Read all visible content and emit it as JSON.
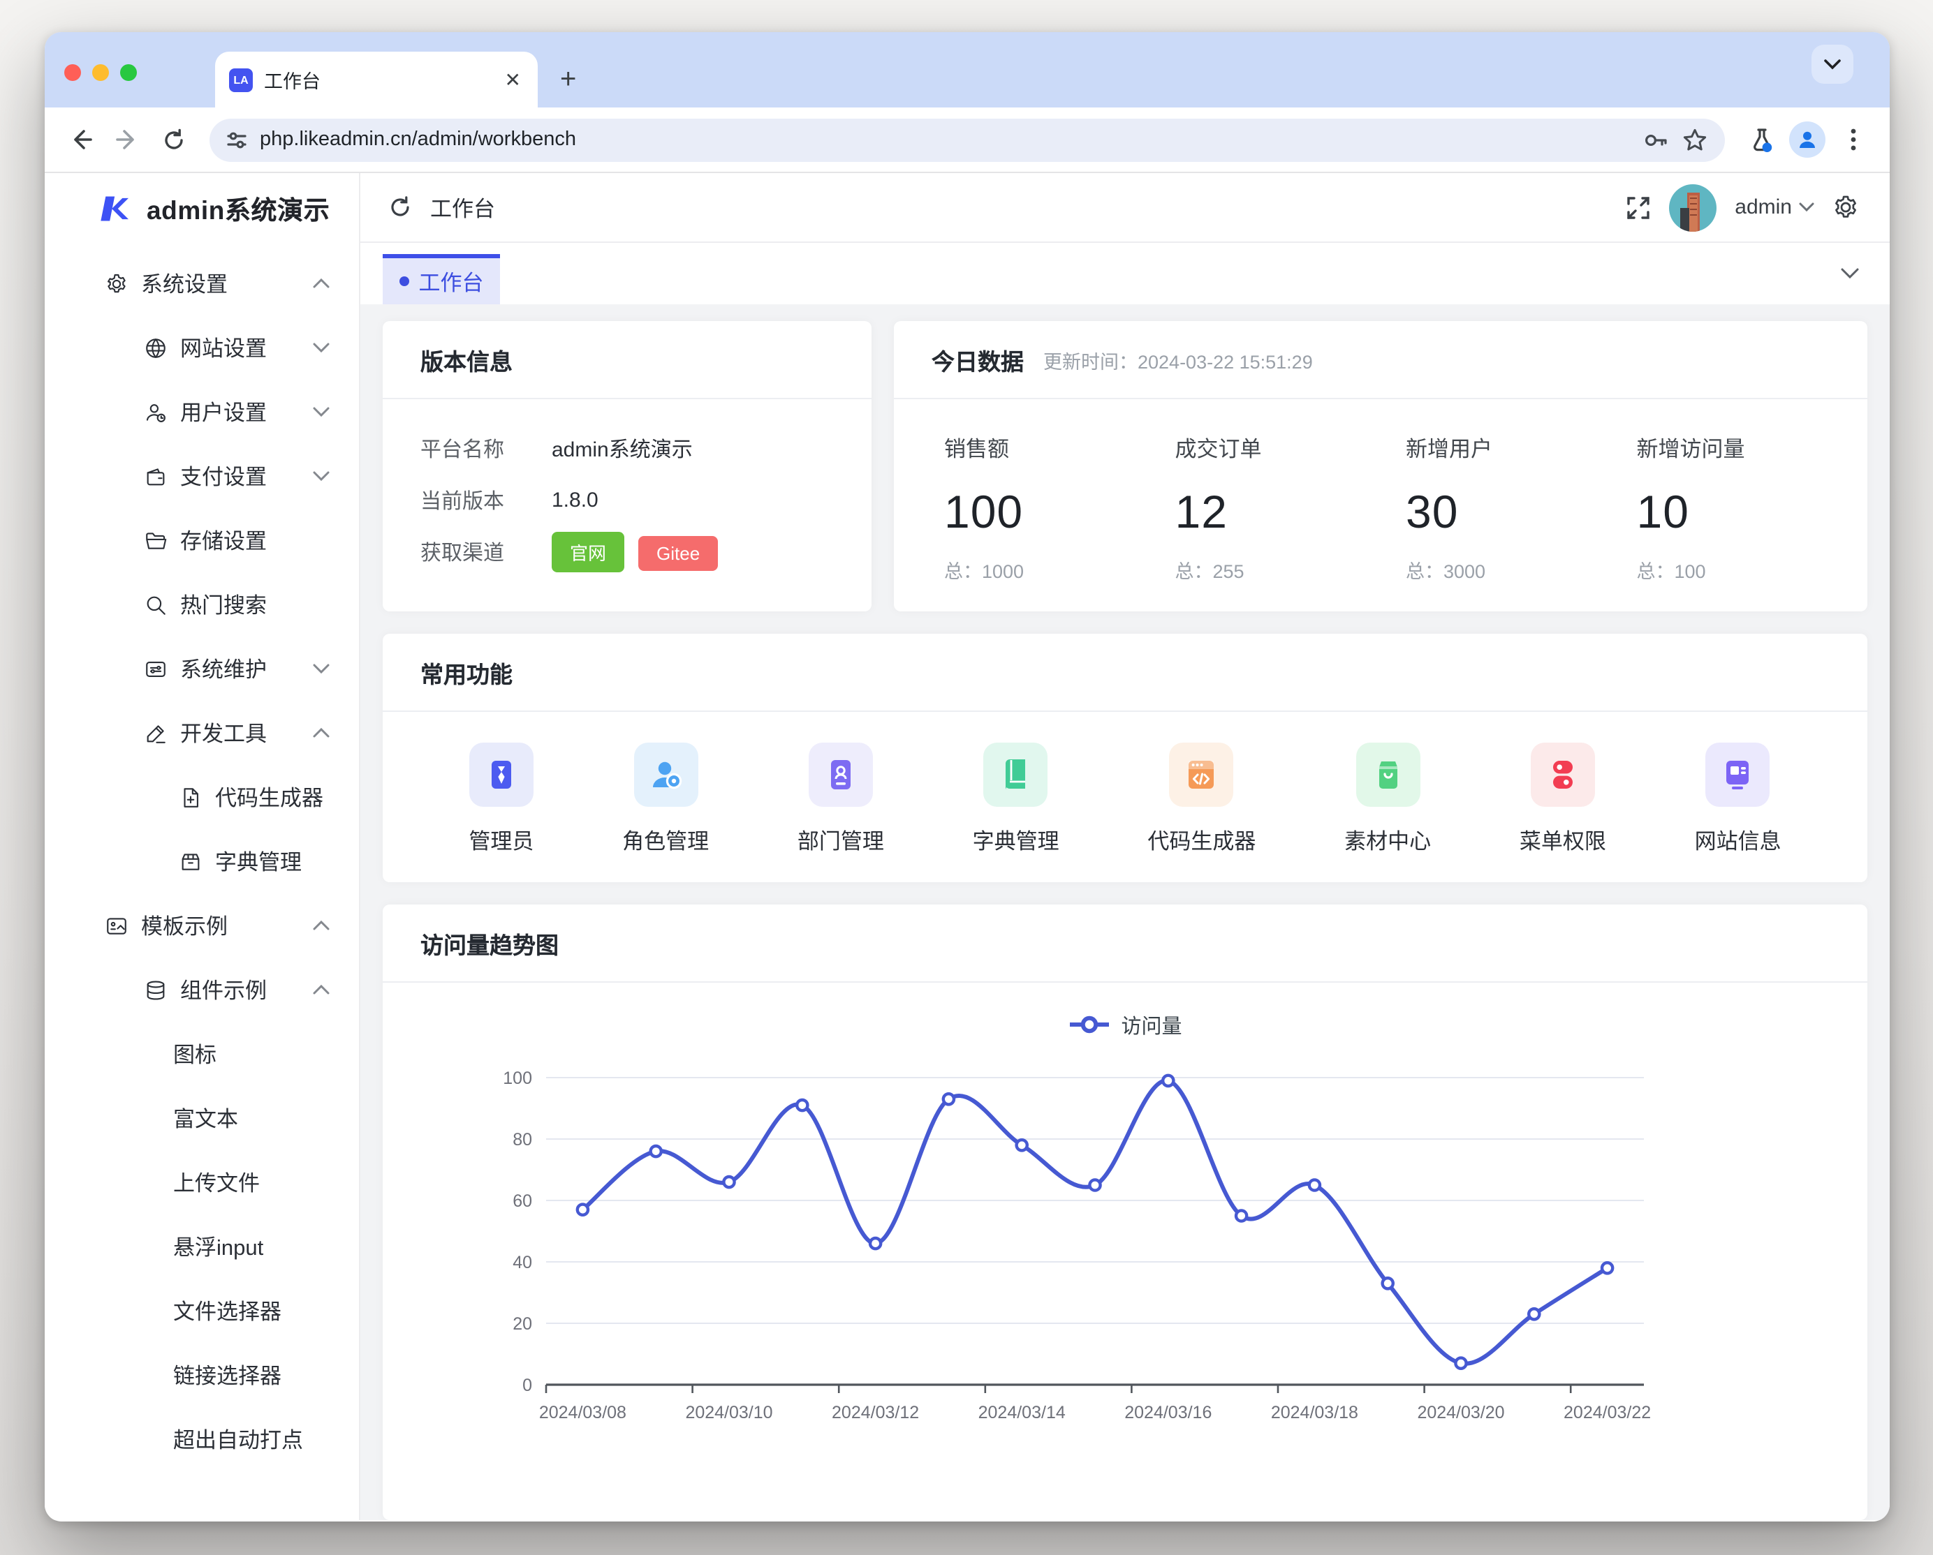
{
  "browser": {
    "tab_title": "工作台",
    "favicon_text": "LA",
    "url": "php.likeadmin.cn/admin/workbench"
  },
  "app": {
    "sidebar": {
      "logo_text": "admin系统演示",
      "menu": [
        {
          "label": "系统设置",
          "icon": "gear",
          "level": 1,
          "chevron": "up"
        },
        {
          "label": "网站设置",
          "icon": "globe",
          "level": 2,
          "chevron": "down"
        },
        {
          "label": "用户设置",
          "icon": "user",
          "level": 2,
          "chevron": "down"
        },
        {
          "label": "支付设置",
          "icon": "wallet",
          "level": 2,
          "chevron": "down"
        },
        {
          "label": "存储设置",
          "icon": "folder",
          "level": 2,
          "chevron": null
        },
        {
          "label": "热门搜索",
          "icon": "search",
          "level": 2,
          "chevron": null
        },
        {
          "label": "系统维护",
          "icon": "maintain",
          "level": 2,
          "chevron": "down"
        },
        {
          "label": "开发工具",
          "icon": "pen",
          "level": 2,
          "chevron": "up"
        },
        {
          "label": "代码生成器",
          "icon": "file-plus",
          "level": 3,
          "chevron": null
        },
        {
          "label": "字典管理",
          "icon": "package",
          "level": 3,
          "chevron": null
        },
        {
          "label": "模板示例",
          "icon": "template",
          "level": 1,
          "chevron": "up"
        },
        {
          "label": "组件示例",
          "icon": "stack",
          "level": 2,
          "chevron": "up"
        },
        {
          "label": "图标",
          "icon": null,
          "level": 0,
          "chevron": null
        },
        {
          "label": "富文本",
          "icon": null,
          "level": 0,
          "chevron": null
        },
        {
          "label": "上传文件",
          "icon": null,
          "level": 0,
          "chevron": null
        },
        {
          "label": "悬浮input",
          "icon": null,
          "level": 0,
          "chevron": null
        },
        {
          "label": "文件选择器",
          "icon": null,
          "level": 0,
          "chevron": null
        },
        {
          "label": "链接选择器",
          "icon": null,
          "level": 0,
          "chevron": null
        },
        {
          "label": "超出自动打点",
          "icon": null,
          "level": 0,
          "chevron": null
        }
      ]
    },
    "navbar": {
      "breadcrumb": "工作台",
      "username": "admin"
    },
    "tabbar": {
      "active_label": "工作台"
    }
  },
  "cards": {
    "version": {
      "title": "版本信息",
      "rows": [
        {
          "label": "平台名称",
          "value": "admin系统演示"
        },
        {
          "label": "当前版本",
          "value": "1.8.0"
        }
      ],
      "channel_label": "获取渠道",
      "channel_buttons": [
        {
          "label": "官网",
          "color": "#67C23A"
        },
        {
          "label": "Gitee",
          "color": "#F56C6C"
        }
      ]
    },
    "today": {
      "title": "今日数据",
      "update_time": "更新时间：2024-03-22 15:51:29",
      "stats": [
        {
          "label": "销售额",
          "value": "100",
          "total": "总：1000"
        },
        {
          "label": "成交订单",
          "value": "12",
          "total": "总：255"
        },
        {
          "label": "新增用户",
          "value": "30",
          "total": "总：3000"
        },
        {
          "label": "新增访问量",
          "value": "10",
          "total": "总：100"
        }
      ]
    },
    "functions": {
      "title": "常用功能",
      "items": [
        {
          "label": "管理员",
          "icon": "admin-tie",
          "tile": "#e8ebfb",
          "color": "#4c5bf0"
        },
        {
          "label": "角色管理",
          "icon": "role",
          "tile": "#e4f1fc",
          "color": "#4da3f2"
        },
        {
          "label": "部门管理",
          "icon": "department",
          "tile": "#eeedfc",
          "color": "#7d6bf2"
        },
        {
          "label": "字典管理",
          "icon": "dict-book",
          "tile": "#e1f7ee",
          "color": "#41cc96"
        },
        {
          "label": "代码生成器",
          "icon": "code-gen",
          "tile": "#fdf1e6",
          "color": "#f59a57"
        },
        {
          "label": "素材中心",
          "icon": "material",
          "tile": "#e2f8e9",
          "color": "#52d181"
        },
        {
          "label": "菜单权限",
          "icon": "menu-auth",
          "tile": "#fceaea",
          "color": "#f23d52"
        },
        {
          "label": "网站信息",
          "icon": "site-info",
          "tile": "#ebe9fd",
          "color": "#7c64f5"
        }
      ]
    },
    "chart": {
      "title": "访问量趋势图"
    }
  },
  "chart_data": {
    "type": "line",
    "title": "访问量趋势图",
    "x": [
      "2024/03/08",
      "2024/03/09",
      "2024/03/10",
      "2024/03/11",
      "2024/03/12",
      "2024/03/13",
      "2024/03/14",
      "2024/03/15",
      "2024/03/16",
      "2024/03/17",
      "2024/03/18",
      "2024/03/19",
      "2024/03/20",
      "2024/03/21",
      "2024/03/22"
    ],
    "x_labels_shown": [
      "2024/03/08",
      "2024/03/10",
      "2024/03/12",
      "2024/03/14",
      "2024/03/16",
      "2024/03/18",
      "2024/03/20",
      "2024/03/22"
    ],
    "series": [
      {
        "name": "访问量",
        "values": [
          57,
          76,
          66,
          91,
          46,
          93,
          78,
          65,
          99,
          55,
          65,
          33,
          7,
          23,
          38
        ]
      }
    ],
    "ylim": [
      0,
      100
    ],
    "y_ticks": [
      0,
      20,
      40,
      60,
      80,
      100
    ],
    "smooth": true,
    "grid": true,
    "legend_position": "top",
    "line_color": "#4659d2"
  }
}
